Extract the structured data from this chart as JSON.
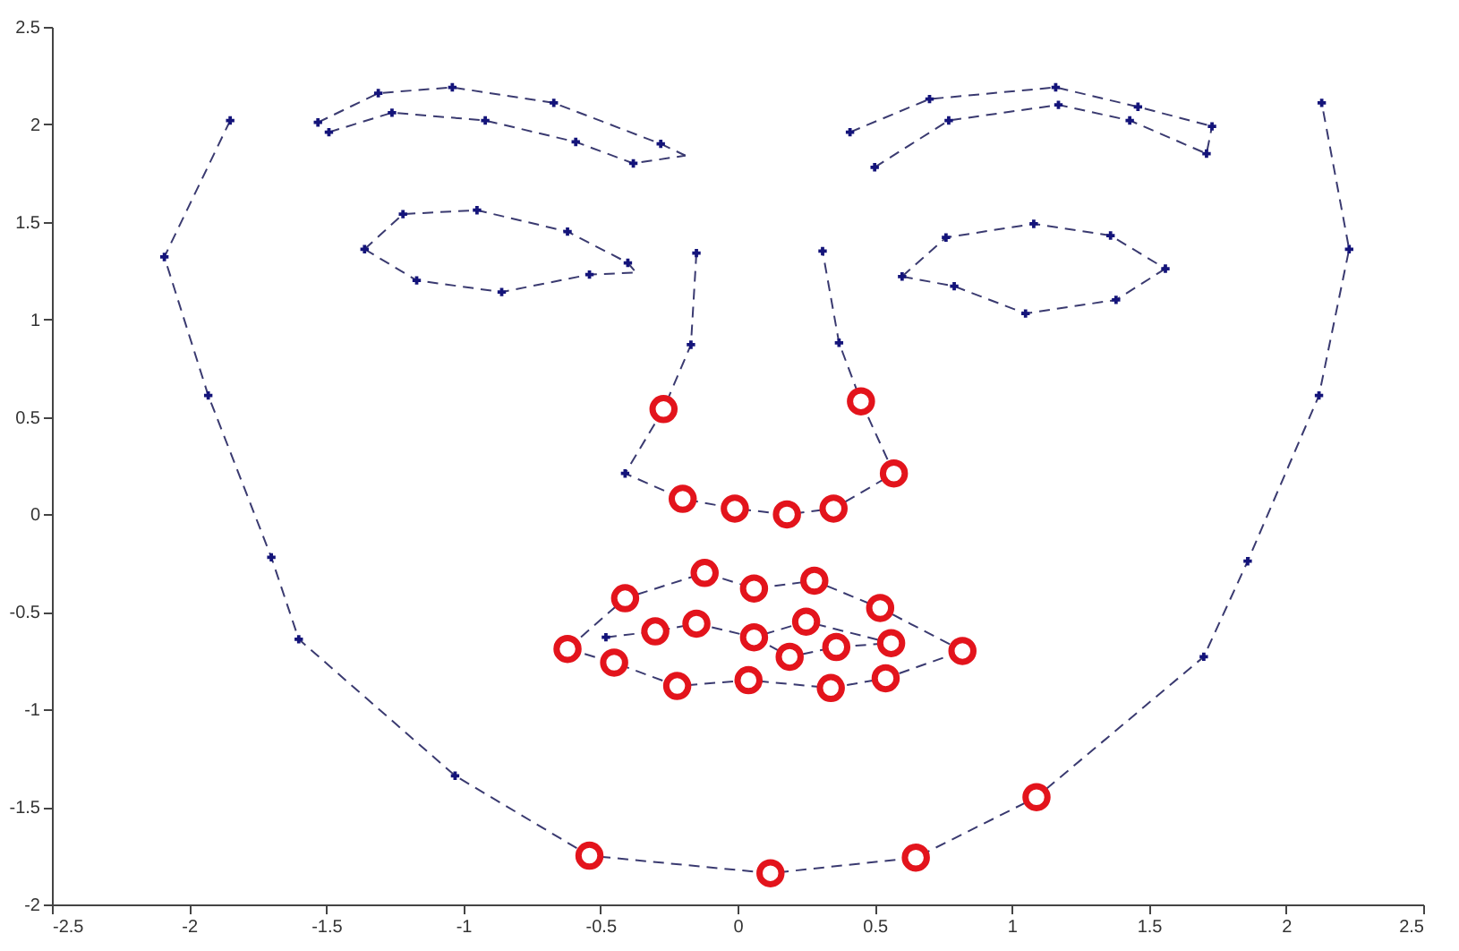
{
  "chart_data": {
    "type": "line",
    "xlim": [
      -2.5,
      2.5
    ],
    "xticks": [
      -2.5,
      -2,
      -1.5,
      -1,
      -0.5,
      0,
      0.5,
      1,
      1.5,
      2,
      2.5
    ],
    "ylim": [
      -2,
      2.5
    ],
    "yticks": [
      -2,
      -1.5,
      -1,
      -0.5,
      0,
      0.5,
      1,
      1.5,
      2,
      2.5
    ],
    "series": [
      {
        "color": "#3a3a70",
        "line_style": "dashed",
        "marker": "none",
        "x": [
          -1.85,
          -2.09,
          -1.93,
          -1.7,
          -1.6,
          -1.03,
          -0.54,
          0.12,
          0.65,
          1.09,
          1.7,
          1.86,
          2.12,
          2.23,
          2.13
        ],
        "values": [
          2.02,
          1.32,
          0.61,
          -0.22,
          -0.64,
          -1.34,
          -1.75,
          -1.84,
          -1.76,
          -1.45,
          -0.73,
          -0.24,
          0.61,
          1.36,
          2.11
        ]
      },
      {
        "color": "#3a3a70",
        "line_style": "dashed",
        "marker": "none",
        "x": [
          -1.53,
          -1.31,
          -1.04,
          -0.67,
          -0.28,
          -0.19
        ],
        "values": [
          2.01,
          2.16,
          2.19,
          2.11,
          1.9,
          1.84
        ]
      },
      {
        "color": "#3a3a70",
        "line_style": "dashed",
        "marker": "none",
        "x": [
          -1.49,
          -1.26,
          -0.92,
          -0.59,
          -0.38,
          -0.19
        ],
        "values": [
          1.96,
          2.06,
          2.02,
          1.91,
          1.8,
          1.84
        ]
      },
      {
        "color": "#3a3a70",
        "line_style": "dashed",
        "marker": "none",
        "x": [
          -1.36,
          -1.22,
          -0.95,
          -0.62,
          -0.4,
          -0.37
        ],
        "values": [
          1.36,
          1.54,
          1.56,
          1.45,
          1.29,
          1.24
        ]
      },
      {
        "color": "#3a3a70",
        "line_style": "dashed",
        "marker": "none",
        "x": [
          -1.36,
          -1.17,
          -0.86,
          -0.54,
          -0.37
        ],
        "values": [
          1.36,
          1.2,
          1.14,
          1.23,
          1.24
        ]
      },
      {
        "color": "#3a3a70",
        "line_style": "dashed",
        "marker": "none",
        "x": [
          0.41,
          0.7,
          1.16,
          1.46,
          1.73
        ],
        "values": [
          1.96,
          2.13,
          2.19,
          2.09,
          1.99
        ]
      },
      {
        "color": "#3a3a70",
        "line_style": "dashed",
        "marker": "none",
        "x": [
          0.5,
          0.77,
          1.17,
          1.43,
          1.71,
          1.73
        ],
        "values": [
          1.78,
          2.02,
          2.1,
          2.02,
          1.85,
          1.99
        ]
      },
      {
        "color": "#3a3a70",
        "line_style": "dashed",
        "marker": "none",
        "x": [
          0.6,
          0.76,
          1.08,
          1.36,
          1.56
        ],
        "values": [
          1.22,
          1.42,
          1.49,
          1.43,
          1.26
        ]
      },
      {
        "color": "#3a3a70",
        "line_style": "dashed",
        "marker": "none",
        "x": [
          0.6,
          0.79,
          1.05,
          1.38,
          1.56
        ],
        "values": [
          1.22,
          1.17,
          1.03,
          1.1,
          1.26
        ]
      },
      {
        "color": "#3a3a70",
        "line_style": "dashed",
        "marker": "none",
        "x": [
          -0.15,
          -0.17,
          -0.27,
          -0.41,
          -0.2,
          -0.01,
          0.18,
          0.35,
          0.57,
          0.45,
          0.37,
          0.31
        ],
        "values": [
          1.34,
          0.87,
          0.54,
          0.21,
          0.08,
          0.03,
          0.0,
          0.03,
          0.21,
          0.58,
          0.88,
          1.35
        ]
      },
      {
        "color": "#3a3a70",
        "line_style": "dashed",
        "marker": "none",
        "x": [
          -0.62,
          -0.41,
          -0.12,
          0.06,
          0.28,
          0.52,
          0.82
        ],
        "values": [
          -0.69,
          -0.43,
          -0.3,
          -0.38,
          -0.34,
          -0.48,
          -0.7
        ]
      },
      {
        "color": "#3a3a70",
        "line_style": "dashed",
        "marker": "none",
        "x": [
          -0.62,
          -0.45,
          -0.22,
          0.04,
          0.34,
          0.54,
          0.82
        ],
        "values": [
          -0.69,
          -0.76,
          -0.88,
          -0.85,
          -0.89,
          -0.84,
          -0.7
        ]
      },
      {
        "color": "#3a3a70",
        "line_style": "dashed",
        "marker": "none",
        "x": [
          -0.48,
          -0.3,
          -0.15,
          0.06,
          0.25,
          0.56
        ],
        "values": [
          -0.63,
          -0.6,
          -0.56,
          -0.63,
          -0.55,
          -0.66
        ]
      },
      {
        "color": "#3a3a70",
        "line_style": "dashed",
        "marker": "none",
        "x": [
          0.06,
          0.19,
          0.36,
          0.56
        ],
        "values": [
          -0.63,
          -0.73,
          -0.68,
          -0.66
        ]
      },
      {
        "type": "scatter",
        "color": "#14147a",
        "marker": "cross",
        "x": [
          -1.85,
          -2.09,
          -1.93,
          -1.7,
          -1.6,
          -1.03,
          1.7,
          1.86,
          2.12,
          2.23,
          2.13,
          -1.53,
          -1.31,
          -1.04,
          -0.67,
          -0.28,
          -0.38,
          -0.59,
          -0.92,
          -1.26,
          -1.49,
          -1.36,
          -1.22,
          -0.95,
          -0.62,
          -0.4,
          -0.54,
          -0.86,
          -1.17,
          0.41,
          0.7,
          1.16,
          1.46,
          1.73,
          1.71,
          1.43,
          1.17,
          0.77,
          0.5,
          0.6,
          0.76,
          1.08,
          1.36,
          1.56,
          1.38,
          1.05,
          0.79,
          -0.15,
          -0.17,
          -0.41,
          0.37,
          0.31,
          -0.48
        ],
        "values": [
          2.02,
          1.32,
          0.61,
          -0.22,
          -0.64,
          -1.34,
          -0.73,
          -0.24,
          0.61,
          1.36,
          2.11,
          2.01,
          2.16,
          2.19,
          2.11,
          1.9,
          1.8,
          1.91,
          2.02,
          2.06,
          1.96,
          1.36,
          1.54,
          1.56,
          1.45,
          1.29,
          1.23,
          1.14,
          1.2,
          1.96,
          2.13,
          2.19,
          2.09,
          1.99,
          1.85,
          2.02,
          2.1,
          2.02,
          1.78,
          1.22,
          1.42,
          1.49,
          1.43,
          1.26,
          1.1,
          1.03,
          1.17,
          1.34,
          0.87,
          0.21,
          0.88,
          1.35,
          -0.63
        ]
      },
      {
        "type": "scatter",
        "color": "#e3141c",
        "marker": "circle",
        "x": [
          -0.27,
          -0.2,
          -0.01,
          0.18,
          0.35,
          0.57,
          0.45,
          -0.62,
          -0.41,
          -0.12,
          0.06,
          0.28,
          0.52,
          0.82,
          0.54,
          0.34,
          0.04,
          -0.22,
          -0.45,
          -0.3,
          -0.15,
          0.06,
          0.25,
          0.56,
          0.36,
          0.19,
          -0.54,
          0.12,
          0.65,
          1.09
        ],
        "values": [
          0.54,
          0.08,
          0.03,
          0.0,
          0.03,
          0.21,
          0.58,
          -0.69,
          -0.43,
          -0.3,
          -0.38,
          -0.34,
          -0.48,
          -0.7,
          -0.84,
          -0.89,
          -0.85,
          -0.88,
          -0.76,
          -0.6,
          -0.56,
          -0.63,
          -0.55,
          -0.66,
          -0.68,
          -0.73,
          -1.75,
          -1.84,
          -1.76,
          -1.45
        ]
      }
    ]
  }
}
